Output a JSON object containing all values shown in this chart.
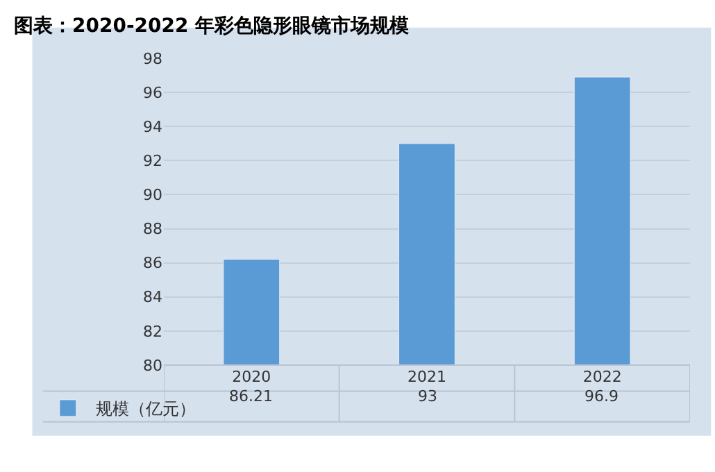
{
  "chart_data": {
    "type": "bar",
    "title": "图表：2020-2022 年彩色隐形眼镜市场规模",
    "categories": [
      "2020",
      "2021",
      "2022"
    ],
    "series": [
      {
        "name": "规模（亿元）",
        "color": "#5b9bd5",
        "values": [
          86.21,
          93,
          96.9
        ]
      }
    ],
    "ylim": [
      80,
      98
    ],
    "yticks": [
      80,
      82,
      84,
      86,
      88,
      90,
      92,
      94,
      96,
      98
    ],
    "grid": "y",
    "legend": "bottom left",
    "data_labels": true
  }
}
